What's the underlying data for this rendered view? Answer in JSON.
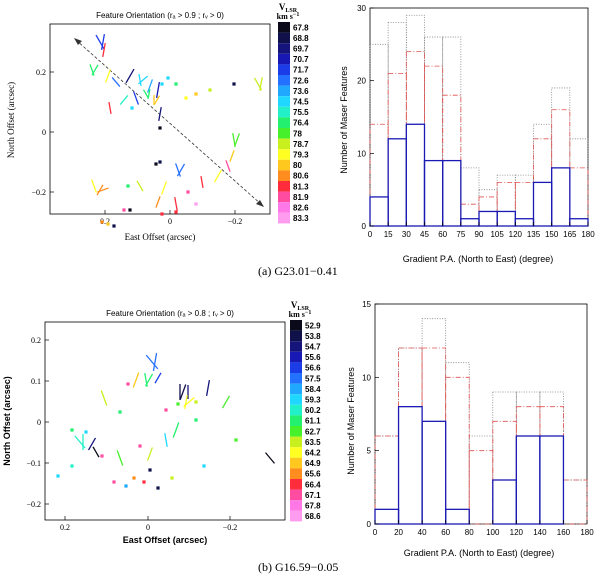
{
  "colors": {
    "scale_a": [
      "#0a0a1a",
      "#10104a",
      "#14147a",
      "#1818b4",
      "#1c3ce8",
      "#2470ff",
      "#20a8ff",
      "#20d8ff",
      "#22f0c8",
      "#22f06e",
      "#46f02a",
      "#c8f01e",
      "#ffff22",
      "#ffc81e",
      "#ff8c1e",
      "#ff2c3c",
      "#ff4ca0",
      "#ff78e8",
      "#ff9cf0"
    ],
    "scale_b": [
      "#0a0a1a",
      "#10104a",
      "#14147a",
      "#1818b4",
      "#1c3ce8",
      "#2470ff",
      "#20a8ff",
      "#20d8ff",
      "#22f0c8",
      "#22f06e",
      "#46f02a",
      "#c8f01e",
      "#ffff22",
      "#ffc81e",
      "#ff8c1e",
      "#ff2c3c",
      "#ff4ca0",
      "#ff78e8",
      "#ff9cf0"
    ],
    "solid": "#1a1ab4",
    "dashed": "#e05050",
    "dotted": "#808080"
  },
  "panels": [
    {
      "caption": "(a) G23.01−0.41",
      "scatter": {
        "title": "Feature Orientation (rₐ > 0.9 ; rᵥ > 0)",
        "xlabel": "East Offset (arcsec)",
        "ylabel": "North Offset (arcsec)",
        "xticks": [
          "0.2",
          "0",
          "−0.2"
        ],
        "yticks": [
          "0.2",
          "0",
          "−0.2"
        ],
        "colorbar_title": "V",
        "colorbar_sub": "LSR",
        "colorbar_unit": "km s",
        "colorbar_exp": "−1",
        "colorbar_values": [
          "67.8",
          "68.8",
          "69.7",
          "70.7",
          "71.7",
          "72.6",
          "73.6",
          "74.5",
          "75.5",
          "76.4",
          "78",
          "78.7",
          "79.3",
          "80",
          "80.6",
          "81.3",
          "81.9",
          "82.6",
          "83.3"
        ]
      },
      "chart_data": {
        "type": "bar",
        "title": "",
        "xlabel": "Gradient P.A. (North to East) (degree)",
        "ylabel": "Number of Maser Features",
        "xticks": [
          "0",
          "15",
          "30",
          "45",
          "60",
          "75",
          "90",
          "105",
          "120",
          "135",
          "150",
          "165",
          "180"
        ],
        "yticks": [
          "0",
          "10",
          "20",
          "30"
        ],
        "xlim": [
          0,
          180
        ],
        "ylim": [
          0,
          30
        ],
        "bin_width": 15,
        "series": [
          {
            "name": "solid",
            "style": "solid",
            "values": [
              4,
              12,
              14,
              9,
              9,
              1,
              2,
              2,
              1,
              6,
              8,
              1
            ]
          },
          {
            "name": "dashed",
            "style": "dashed",
            "values": [
              14,
              21,
              24,
              22,
              18,
              3,
              4,
              6,
              6,
              12,
              16,
              8
            ]
          },
          {
            "name": "dotted",
            "style": "dotted",
            "values": [
              25,
              28,
              29,
              26,
              26,
              8,
              5,
              7,
              7,
              14,
              19,
              12
            ]
          }
        ]
      }
    },
    {
      "caption": "(b) G16.59−0.05",
      "scatter": {
        "title": "Feature Orientation (rₐ > 0.8 ; rᵥ > 0)",
        "xlabel": "East Offset (arcsec)",
        "ylabel": "North Offset (arcsec)",
        "xticks": [
          "0.2",
          "0",
          "−0.2"
        ],
        "yticks": [
          "0.2",
          "0.1",
          "0",
          "−0.1",
          "−0.2"
        ],
        "colorbar_title": "V",
        "colorbar_sub": "LSR",
        "colorbar_unit": "km s",
        "colorbar_exp": "−1",
        "colorbar_values": [
          "52.9",
          "53.8",
          "54.7",
          "55.6",
          "56.6",
          "57.5",
          "58.4",
          "59.3",
          "60.2",
          "61.1",
          "62.7",
          "63.5",
          "64.2",
          "64.9",
          "65.6",
          "66.4",
          "67.1",
          "67.8",
          "68.6"
        ]
      },
      "chart_data": {
        "type": "bar",
        "title": "",
        "xlabel": "Gradient P.A. (North to East) (degree)",
        "ylabel": "Number of Maser Features",
        "xticks": [
          "0",
          "20",
          "40",
          "60",
          "80",
          "100",
          "120",
          "140",
          "160",
          "180"
        ],
        "yticks": [
          "0",
          "5",
          "10",
          "15"
        ],
        "xlim": [
          0,
          180
        ],
        "ylim": [
          0,
          15
        ],
        "bin_width": 20,
        "series": [
          {
            "name": "solid",
            "style": "solid",
            "values": [
              1,
              8,
              7,
              1,
              0,
              3,
              6,
              6,
              0
            ]
          },
          {
            "name": "dashed",
            "style": "dashed",
            "values": [
              6,
              12,
              12,
              10,
              5,
              7,
              8,
              8,
              3
            ]
          },
          {
            "name": "dotted",
            "style": "dotted",
            "values": [
              6,
              12,
              14,
              11,
              6,
              9,
              9,
              9,
              3
            ]
          }
        ]
      }
    }
  ]
}
